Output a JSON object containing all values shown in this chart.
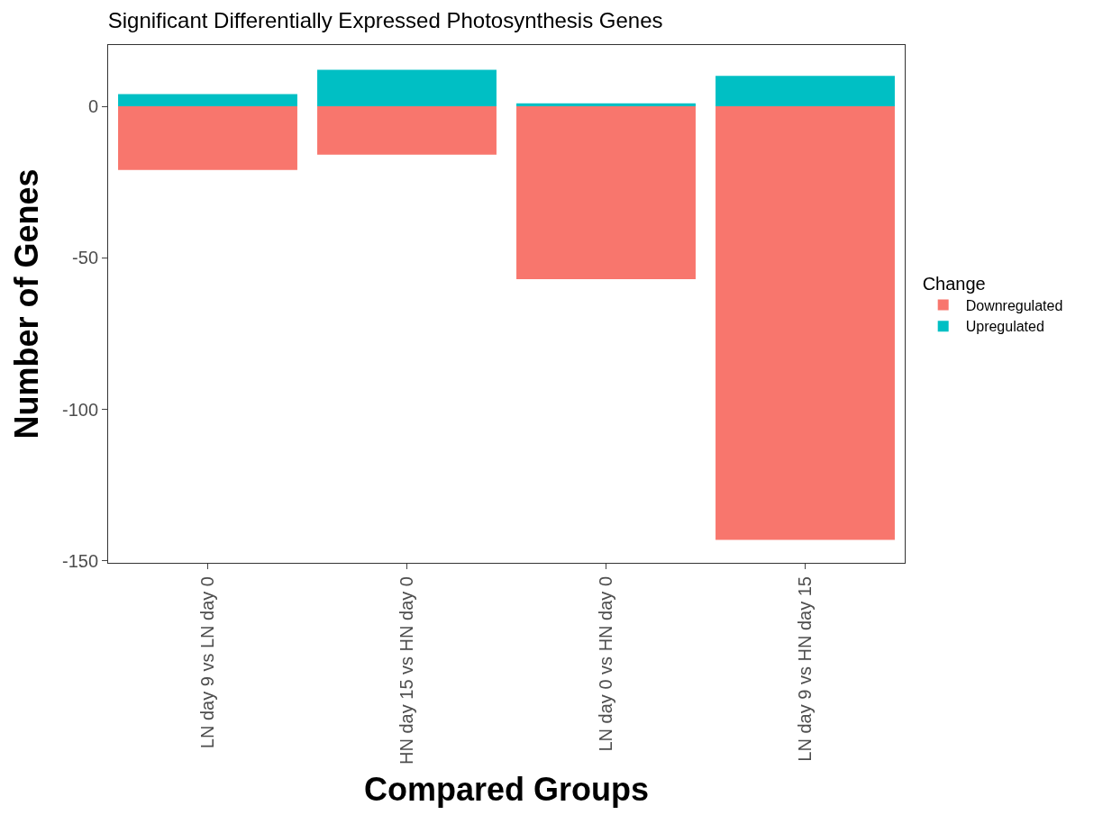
{
  "chart_data": {
    "type": "bar",
    "title": "Significant Differentially Expressed Photosynthesis Genes",
    "xlabel": "Compared Groups",
    "ylabel": "Number of Genes",
    "legend_title": "Change",
    "categories": [
      "LN day 9 vs LN day 0",
      "HN day 15 vs HN day 0",
      "LN day 0 vs HN day 0",
      "LN day 9 vs HN day 15"
    ],
    "stacked": true,
    "series": [
      {
        "name": "Downregulated",
        "color": "#f8766d",
        "values": [
          -21,
          -16,
          -57,
          -143
        ]
      },
      {
        "name": "Upregulated",
        "color": "#00bfc4",
        "values": [
          4,
          12,
          1,
          10
        ]
      }
    ],
    "ylim": [
      -150.6,
      20.2
    ],
    "yticks": [
      0,
      -50,
      -100,
      -150
    ],
    "legend": "right"
  }
}
